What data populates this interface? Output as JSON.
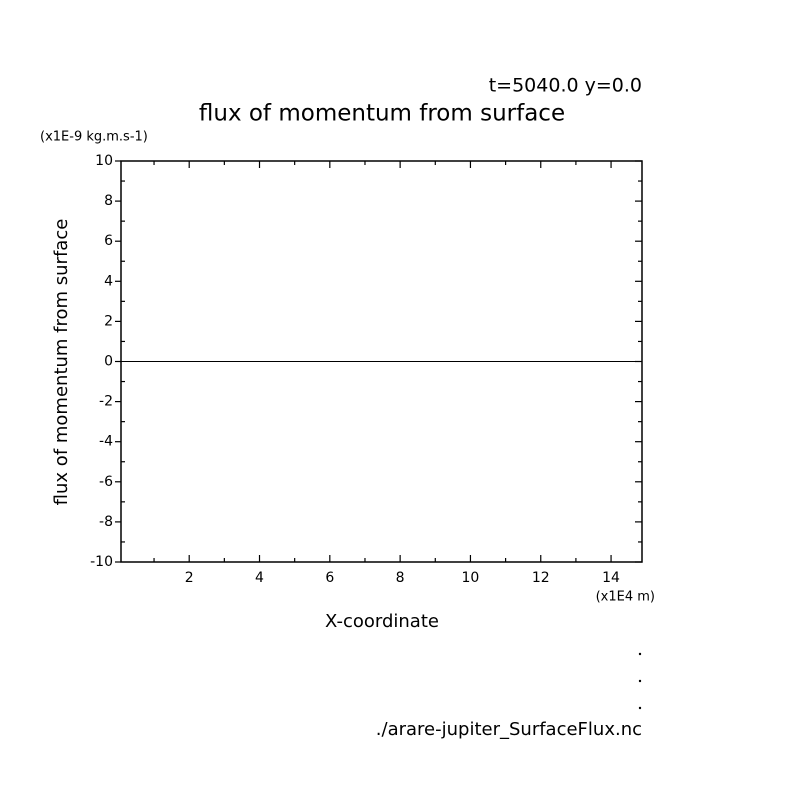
{
  "chart_data": {
    "type": "line",
    "title": "flux of momentum from surface",
    "subtitle": "t=5040.0 y=0.0",
    "y_unit": "(x1E-9 kg.m.s-1)",
    "x_unit": "(x1E4 m)",
    "xlabel": "X-coordinate",
    "ylabel": "flux of momentum from surface",
    "footer": "./arare-jupiter_SurfaceFlux.nc",
    "x": [
      0.06,
      14.88
    ],
    "series": [
      {
        "name": "flux of momentum from surface",
        "color": "#000000",
        "values": [
          0,
          0
        ]
      }
    ],
    "xlim": [
      0.06,
      14.88
    ],
    "ylim": [
      -10,
      10
    ],
    "xticks": [
      2,
      4,
      6,
      8,
      10,
      12,
      14
    ],
    "yticks": [
      -10,
      -8,
      -6,
      -4,
      -2,
      0,
      2,
      4,
      6,
      8,
      10
    ],
    "xminorticks": [
      1,
      3,
      5,
      7,
      9,
      11,
      13
    ],
    "yminorticks": [
      -9,
      -7,
      -5,
      -3,
      -1,
      1,
      3,
      5,
      7,
      9
    ],
    "grid": false
  }
}
